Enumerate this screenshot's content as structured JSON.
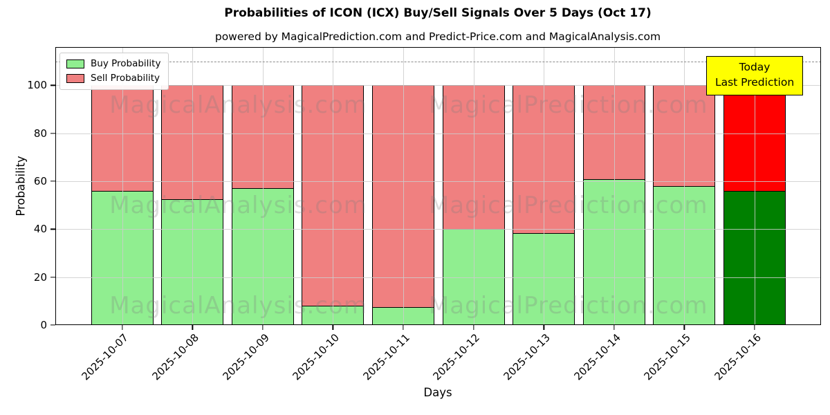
{
  "title": "Probabilities of ICON (ICX) Buy/Sell Signals Over 5 Days (Oct 17)",
  "subtitle": "powered by MagicalPrediction.com and Predict-Price.com and MagicalAnalysis.com",
  "watermarks": {
    "left_text": "MagicalAnalysis.com",
    "right_text": "MagicalPrediction.com"
  },
  "annotation": {
    "line1": "Today",
    "line2": "Last Prediction"
  },
  "legend": {
    "items": [
      {
        "label": "Buy Probability",
        "color": "#90EE90"
      },
      {
        "label": "Sell Probability",
        "color": "#F08080"
      }
    ]
  },
  "chart_data": {
    "type": "bar",
    "stacked": true,
    "title": "Probabilities of ICON (ICX) Buy/Sell Signals Over 5 Days (Oct 17)",
    "xlabel": "Days",
    "ylabel": "Probability",
    "categories": [
      "2025-10-07",
      "2025-10-08",
      "2025-10-09",
      "2025-10-10",
      "2025-10-11",
      "2025-10-12",
      "2025-10-13",
      "2025-10-14",
      "2025-10-15",
      "2025-10-16"
    ],
    "series": [
      {
        "name": "Buy Probability",
        "color": "#90EE90",
        "today_color": "#008000",
        "values": [
          56,
          52.5,
          57,
          8,
          7.5,
          40,
          38.5,
          61,
          58,
          56
        ]
      },
      {
        "name": "Sell Probability",
        "color": "#F08080",
        "today_color": "#FF0000",
        "values": [
          44,
          47.5,
          43,
          92,
          92.5,
          60,
          61.5,
          39,
          42,
          44
        ]
      }
    ],
    "today_index": 9,
    "ylim": [
      0,
      116
    ],
    "yticks": [
      0,
      20,
      40,
      60,
      80,
      100
    ],
    "dashed_line_y": 110,
    "grid": true,
    "legend_position": "upper left",
    "bar_edge_color": "#000000"
  }
}
